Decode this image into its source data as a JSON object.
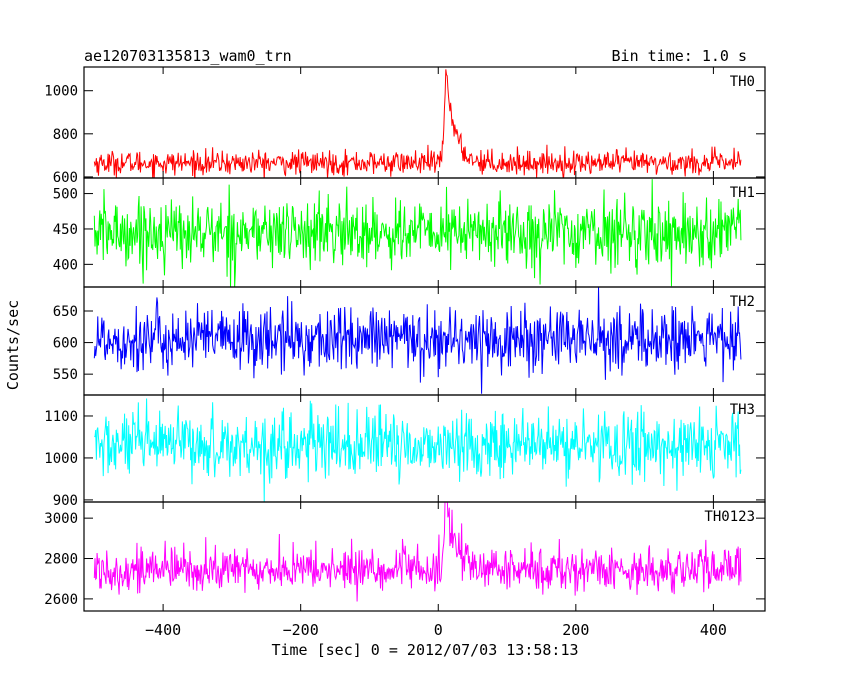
{
  "chart_data": {
    "type": "line",
    "title": "ae120703135813_wam0_trn",
    "subtitle": "Bin time: 1.0 s",
    "xlabel": "Time [sec] 0 = 2012/07/03 13:58:13",
    "ylabel": "Counts/sec",
    "xlim": [
      -515,
      475
    ],
    "x_range": [
      -500,
      440
    ],
    "x_ticks": [
      -400,
      -200,
      0,
      200,
      400
    ],
    "x_tick_labels": [
      "−400",
      "−200",
      "0",
      "200",
      "400"
    ],
    "panels": [
      {
        "name": "TH0",
        "color": "#ff0000",
        "ylim": [
          595,
          1110
        ],
        "y_ticks": [
          600,
          800,
          1000
        ],
        "y_tick_labels": [
          "600",
          "800",
          "1000"
        ],
        "baseline": 665,
        "noise": 28,
        "peak": {
          "t": 12,
          "height": 420,
          "rise": 3,
          "decay": 12
        }
      },
      {
        "name": "TH1",
        "color": "#00ff00",
        "ylim": [
          368,
          522
        ],
        "y_ticks": [
          400,
          450,
          500
        ],
        "y_tick_labels": [
          "400",
          "450",
          "500"
        ],
        "baseline": 445,
        "noise": 24,
        "peak": null
      },
      {
        "name": "TH2",
        "color": "#0000ff",
        "ylim": [
          517,
          688
        ],
        "y_ticks": [
          550,
          600,
          650
        ],
        "y_tick_labels": [
          "550",
          "600",
          "650"
        ],
        "baseline": 605,
        "noise": 26,
        "peak": null
      },
      {
        "name": "TH3",
        "color": "#00ffff",
        "ylim": [
          895,
          1150
        ],
        "y_ticks": [
          900,
          1000,
          1100
        ],
        "y_tick_labels": [
          "900",
          "1000",
          "1100"
        ],
        "baseline": 1030,
        "noise": 40,
        "peak": null
      },
      {
        "name": "TH0123",
        "color": "#ff00ff",
        "ylim": [
          2540,
          3080
        ],
        "y_ticks": [
          2600,
          2800,
          3000
        ],
        "y_tick_labels": [
          "2600",
          "2800",
          "3000"
        ],
        "baseline": 2745,
        "noise": 55,
        "peak": {
          "t": 12,
          "height": 320,
          "rise": 3,
          "decay": 14
        }
      }
    ],
    "grid": false,
    "legend": "panel labels top-right"
  }
}
